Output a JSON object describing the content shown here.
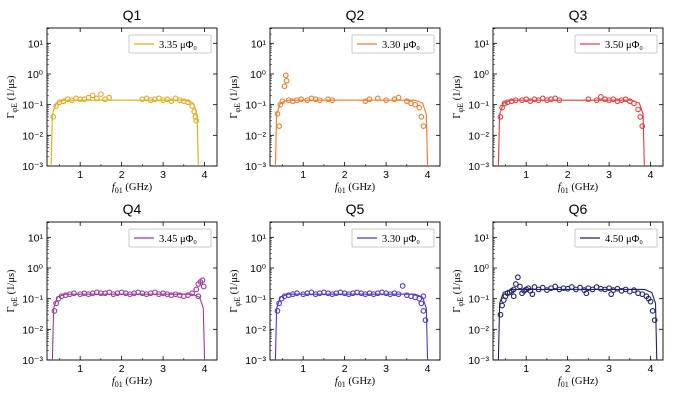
{
  "chart_data": [
    {
      "type": "scatter",
      "title": "Q1",
      "legend": "3.35 μΦ₀",
      "color": "#e6a817",
      "xlabel_main": "f",
      "xlabel_sub": "01",
      "xlabel_unit": " (GHz)",
      "ylabel_main": "Γ",
      "ylabel_sub": "φE",
      "ylabel_unit": " (1/μs)",
      "xlim": [
        0.2,
        4.3
      ],
      "ylim_log10": [
        -3,
        1.5
      ],
      "xticks": [
        "1",
        "2",
        "3",
        "4"
      ],
      "yticks": [
        "10⁻³",
        "10⁻²",
        "10⁻¹",
        "10⁰",
        "10¹"
      ],
      "f_min": 0.3,
      "f_max": 3.85,
      "plateau": 0.14,
      "points": [
        [
          0.35,
          0.04
        ],
        [
          0.42,
          0.09
        ],
        [
          0.5,
          0.12
        ],
        [
          0.6,
          0.13
        ],
        [
          0.7,
          0.15
        ],
        [
          0.8,
          0.14
        ],
        [
          0.9,
          0.16
        ],
        [
          1.0,
          0.15
        ],
        [
          1.1,
          0.15
        ],
        [
          1.2,
          0.17
        ],
        [
          1.3,
          0.2
        ],
        [
          1.4,
          0.16
        ],
        [
          1.5,
          0.22
        ],
        [
          1.6,
          0.15
        ],
        [
          1.7,
          0.17
        ],
        [
          2.5,
          0.15
        ],
        [
          2.6,
          0.16
        ],
        [
          2.7,
          0.14
        ],
        [
          2.8,
          0.15
        ],
        [
          2.9,
          0.16
        ],
        [
          3.0,
          0.14
        ],
        [
          3.1,
          0.15
        ],
        [
          3.2,
          0.13
        ],
        [
          3.3,
          0.16
        ],
        [
          3.4,
          0.14
        ],
        [
          3.5,
          0.13
        ],
        [
          3.6,
          0.12
        ],
        [
          3.7,
          0.09
        ],
        [
          3.75,
          0.06
        ],
        [
          3.78,
          0.04
        ],
        [
          3.8,
          0.03
        ]
      ]
    },
    {
      "type": "scatter",
      "title": "Q2",
      "legend": "3.30 μΦ₀",
      "color": "#f07a25",
      "xlabel_main": "f",
      "xlabel_sub": "01",
      "xlabel_unit": " (GHz)",
      "ylabel_main": "Γ",
      "ylabel_sub": "φE",
      "ylabel_unit": " (1/μs)",
      "xlim": [
        0.2,
        4.3
      ],
      "ylim_log10": [
        -3,
        1.5
      ],
      "xticks": [
        "1",
        "2",
        "3",
        "4"
      ],
      "yticks": [
        "10⁻³",
        "10⁻²",
        "10⁻¹",
        "10⁰",
        "10¹"
      ],
      "f_min": 0.33,
      "f_max": 4.0,
      "plateau": 0.14,
      "points": [
        [
          0.38,
          0.05
        ],
        [
          0.42,
          0.02
        ],
        [
          0.45,
          0.1
        ],
        [
          0.5,
          0.13
        ],
        [
          0.55,
          0.4
        ],
        [
          0.58,
          0.9
        ],
        [
          0.6,
          0.6
        ],
        [
          0.65,
          0.14
        ],
        [
          0.75,
          0.13
        ],
        [
          0.85,
          0.14
        ],
        [
          0.95,
          0.15
        ],
        [
          1.1,
          0.14
        ],
        [
          1.2,
          0.16
        ],
        [
          1.3,
          0.15
        ],
        [
          1.4,
          0.14
        ],
        [
          1.6,
          0.15
        ],
        [
          1.7,
          0.14
        ],
        [
          2.5,
          0.13
        ],
        [
          2.6,
          0.15
        ],
        [
          2.8,
          0.16
        ],
        [
          3.0,
          0.14
        ],
        [
          3.2,
          0.15
        ],
        [
          3.3,
          0.17
        ],
        [
          3.5,
          0.13
        ],
        [
          3.6,
          0.11
        ],
        [
          3.7,
          0.1
        ],
        [
          3.8,
          0.08
        ],
        [
          3.85,
          0.04
        ],
        [
          3.9,
          0.02
        ]
      ]
    },
    {
      "type": "scatter",
      "title": "Q3",
      "legend": "3.50 μΦ₀",
      "color": "#e63c3c",
      "xlabel_main": "f",
      "xlabel_sub": "01",
      "xlabel_unit": " (GHz)",
      "ylabel_main": "Γ",
      "ylabel_sub": "φE",
      "ylabel_unit": " (1/μs)",
      "xlim": [
        0.2,
        4.3
      ],
      "ylim_log10": [
        -3,
        1.5
      ],
      "xticks": [
        "1",
        "2",
        "3",
        "4"
      ],
      "yticks": [
        "10⁻³",
        "10⁻²",
        "10⁻¹",
        "10⁰",
        "10¹"
      ],
      "f_min": 0.33,
      "f_max": 3.85,
      "plateau": 0.14,
      "points": [
        [
          0.38,
          0.04
        ],
        [
          0.42,
          0.08
        ],
        [
          0.48,
          0.11
        ],
        [
          0.55,
          0.12
        ],
        [
          0.65,
          0.13
        ],
        [
          0.75,
          0.14
        ],
        [
          0.9,
          0.14
        ],
        [
          1.0,
          0.15
        ],
        [
          1.1,
          0.13
        ],
        [
          1.2,
          0.15
        ],
        [
          1.3,
          0.14
        ],
        [
          1.4,
          0.16
        ],
        [
          1.5,
          0.14
        ],
        [
          1.6,
          0.15
        ],
        [
          1.7,
          0.16
        ],
        [
          1.8,
          0.14
        ],
        [
          2.5,
          0.15
        ],
        [
          2.7,
          0.14
        ],
        [
          2.8,
          0.18
        ],
        [
          2.9,
          0.15
        ],
        [
          3.0,
          0.14
        ],
        [
          3.1,
          0.15
        ],
        [
          3.2,
          0.13
        ],
        [
          3.3,
          0.14
        ],
        [
          3.4,
          0.15
        ],
        [
          3.5,
          0.13
        ],
        [
          3.6,
          0.11
        ],
        [
          3.7,
          0.07
        ],
        [
          3.75,
          0.04
        ],
        [
          3.8,
          0.02
        ]
      ]
    },
    {
      "type": "scatter",
      "title": "Q4",
      "legend": "3.45 μΦ₀",
      "color": "#9b3a9f",
      "xlabel_main": "f",
      "xlabel_sub": "01",
      "xlabel_unit": " (GHz)",
      "ylabel_main": "Γ",
      "ylabel_sub": "φE",
      "ylabel_unit": " (1/μs)",
      "xlim": [
        0.2,
        4.3
      ],
      "ylim_log10": [
        -3,
        1.5
      ],
      "xticks": [
        "1",
        "2",
        "3",
        "4"
      ],
      "yticks": [
        "10⁻³",
        "10⁻²",
        "10⁻¹",
        "10⁰",
        "10¹"
      ],
      "f_min": 0.33,
      "f_max": 4.0,
      "plateau": 0.14,
      "points": [
        [
          0.38,
          0.04
        ],
        [
          0.42,
          0.07
        ],
        [
          0.48,
          0.1
        ],
        [
          0.55,
          0.12
        ],
        [
          0.65,
          0.13
        ],
        [
          0.75,
          0.14
        ],
        [
          0.85,
          0.15
        ],
        [
          1.0,
          0.14
        ],
        [
          1.1,
          0.15
        ],
        [
          1.2,
          0.14
        ],
        [
          1.3,
          0.15
        ],
        [
          1.4,
          0.16
        ],
        [
          1.5,
          0.15
        ],
        [
          1.6,
          0.15
        ],
        [
          1.7,
          0.16
        ],
        [
          1.8,
          0.14
        ],
        [
          1.9,
          0.15
        ],
        [
          2.0,
          0.16
        ],
        [
          2.1,
          0.15
        ],
        [
          2.2,
          0.14
        ],
        [
          2.3,
          0.15
        ],
        [
          2.4,
          0.16
        ],
        [
          2.5,
          0.15
        ],
        [
          2.6,
          0.14
        ],
        [
          2.7,
          0.15
        ],
        [
          2.8,
          0.16
        ],
        [
          2.9,
          0.14
        ],
        [
          3.0,
          0.15
        ],
        [
          3.1,
          0.14
        ],
        [
          3.2,
          0.13
        ],
        [
          3.3,
          0.14
        ],
        [
          3.4,
          0.13
        ],
        [
          3.5,
          0.12
        ],
        [
          3.6,
          0.13
        ],
        [
          3.7,
          0.15
        ],
        [
          3.8,
          0.2
        ],
        [
          3.85,
          0.3
        ],
        [
          3.9,
          0.35
        ],
        [
          3.95,
          0.4
        ],
        [
          3.98,
          0.25
        ],
        [
          3.85,
          0.12
        ]
      ]
    },
    {
      "type": "scatter",
      "title": "Q5",
      "legend": "3.30 μΦ₀",
      "color": "#5536c8",
      "xlabel_main": "f",
      "xlabel_sub": "01",
      "xlabel_unit": " (GHz)",
      "ylabel_main": "Γ",
      "ylabel_sub": "φE",
      "ylabel_unit": " (1/μs)",
      "xlim": [
        0.2,
        4.3
      ],
      "ylim_log10": [
        -3,
        1.5
      ],
      "xticks": [
        "1",
        "2",
        "3",
        "4"
      ],
      "yticks": [
        "10⁻³",
        "10⁻²",
        "10⁻¹",
        "10⁰",
        "10¹"
      ],
      "f_min": 0.33,
      "f_max": 4.0,
      "plateau": 0.14,
      "points": [
        [
          0.38,
          0.04
        ],
        [
          0.42,
          0.07
        ],
        [
          0.48,
          0.1
        ],
        [
          0.55,
          0.12
        ],
        [
          0.65,
          0.13
        ],
        [
          0.75,
          0.14
        ],
        [
          0.85,
          0.15
        ],
        [
          1.0,
          0.14
        ],
        [
          1.1,
          0.15
        ],
        [
          1.2,
          0.16
        ],
        [
          1.3,
          0.14
        ],
        [
          1.4,
          0.15
        ],
        [
          1.5,
          0.16
        ],
        [
          1.6,
          0.15
        ],
        [
          1.7,
          0.14
        ],
        [
          1.8,
          0.15
        ],
        [
          1.9,
          0.16
        ],
        [
          2.0,
          0.15
        ],
        [
          2.1,
          0.14
        ],
        [
          2.2,
          0.15
        ],
        [
          2.3,
          0.16
        ],
        [
          2.4,
          0.15
        ],
        [
          2.5,
          0.14
        ],
        [
          2.6,
          0.15
        ],
        [
          2.7,
          0.14
        ],
        [
          2.8,
          0.15
        ],
        [
          2.9,
          0.16
        ],
        [
          3.0,
          0.15
        ],
        [
          3.1,
          0.14
        ],
        [
          3.2,
          0.15
        ],
        [
          3.3,
          0.14
        ],
        [
          3.4,
          0.26
        ],
        [
          3.5,
          0.13
        ],
        [
          3.6,
          0.12
        ],
        [
          3.7,
          0.11
        ],
        [
          3.8,
          0.1
        ],
        [
          3.85,
          0.07
        ],
        [
          3.9,
          0.04
        ],
        [
          3.95,
          0.02
        ],
        [
          3.9,
          0.12
        ]
      ]
    },
    {
      "type": "scatter",
      "title": "Q6",
      "legend": "4.50 μΦ₀",
      "color": "#1f2366",
      "xlabel_main": "f",
      "xlabel_sub": "01",
      "xlabel_unit": " (GHz)",
      "ylabel_main": "Γ",
      "ylabel_sub": "φE",
      "ylabel_unit": " (1/μs)",
      "xlim": [
        0.2,
        4.3
      ],
      "ylim_log10": [
        -3,
        1.5
      ],
      "xticks": [
        "1",
        "2",
        "3",
        "4"
      ],
      "yticks": [
        "10⁻³",
        "10⁻²",
        "10⁻¹",
        "10⁰",
        "10¹"
      ],
      "f_min": 0.33,
      "f_max": 4.15,
      "plateau": 0.2,
      "points": [
        [
          0.38,
          0.03
        ],
        [
          0.42,
          0.06
        ],
        [
          0.46,
          0.09
        ],
        [
          0.5,
          0.12
        ],
        [
          0.55,
          0.15
        ],
        [
          0.6,
          0.16
        ],
        [
          0.65,
          0.18
        ],
        [
          0.7,
          0.2
        ],
        [
          0.75,
          0.3
        ],
        [
          0.8,
          0.5
        ],
        [
          0.85,
          0.25
        ],
        [
          0.9,
          0.15
        ],
        [
          0.95,
          0.18
        ],
        [
          1.0,
          0.2
        ],
        [
          1.05,
          0.22
        ],
        [
          1.1,
          0.18
        ],
        [
          1.2,
          0.24
        ],
        [
          1.3,
          0.2
        ],
        [
          1.4,
          0.23
        ],
        [
          1.5,
          0.19
        ],
        [
          1.6,
          0.22
        ],
        [
          1.7,
          0.25
        ],
        [
          1.8,
          0.2
        ],
        [
          1.9,
          0.22
        ],
        [
          2.0,
          0.21
        ],
        [
          2.1,
          0.24
        ],
        [
          2.2,
          0.2
        ],
        [
          2.3,
          0.23
        ],
        [
          2.4,
          0.19
        ],
        [
          2.5,
          0.22
        ],
        [
          2.6,
          0.2
        ],
        [
          2.7,
          0.24
        ],
        [
          2.8,
          0.21
        ],
        [
          2.9,
          0.2
        ],
        [
          3.0,
          0.22
        ],
        [
          3.1,
          0.19
        ],
        [
          3.2,
          0.21
        ],
        [
          3.3,
          0.18
        ],
        [
          3.4,
          0.2
        ],
        [
          3.5,
          0.17
        ],
        [
          3.6,
          0.19
        ],
        [
          3.7,
          0.15
        ],
        [
          3.8,
          0.14
        ],
        [
          3.9,
          0.12
        ],
        [
          4.0,
          0.08
        ],
        [
          4.05,
          0.04
        ],
        [
          4.1,
          0.02
        ],
        [
          3.95,
          0.1
        ],
        [
          0.7,
          0.12
        ],
        [
          1.15,
          0.14
        ],
        [
          2.45,
          0.15
        ],
        [
          3.05,
          0.14
        ]
      ]
    }
  ]
}
